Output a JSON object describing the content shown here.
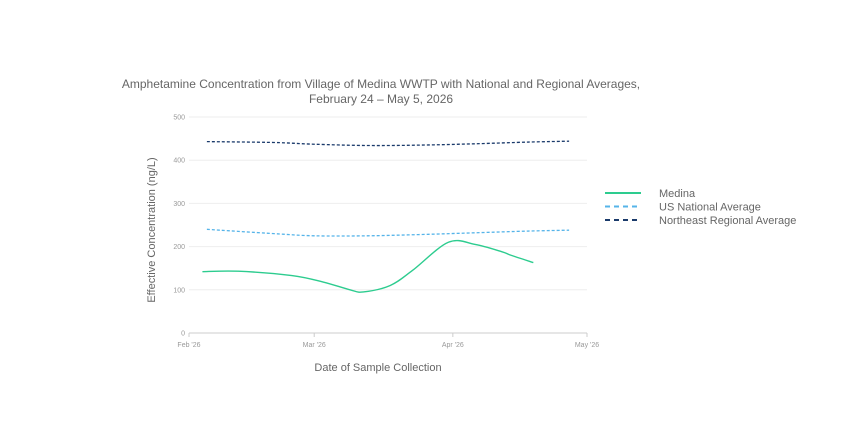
{
  "chart_data": {
    "type": "line",
    "title_line1": "Amphetamine Concentration from Village of Medina WWTP with National and Regional Averages,",
    "title_line2": "February 24 – May 5, 2026",
    "xlabel": "Date of Sample Collection",
    "ylabel": "Effective Concentration (ng/L)",
    "xlim": [
      "2026-02-01",
      "2026-05-01"
    ],
    "ylim": [
      0,
      500
    ],
    "x_ticks": [
      {
        "date": "2026-02-01",
        "label": "Feb '26"
      },
      {
        "date": "2026-03-01",
        "label": "Mar '26"
      },
      {
        "date": "2026-04-01",
        "label": "Apr '26"
      },
      {
        "date": "2026-05-01",
        "label": "May '26"
      }
    ],
    "y_ticks": [
      0,
      100,
      200,
      300,
      400,
      500
    ],
    "grid": true,
    "legend_position": "right",
    "series": [
      {
        "name": "Medina",
        "color": "#2dcc8f",
        "dash": "solid",
        "points": [
          {
            "x": "2026-02-04",
            "y": 142
          },
          {
            "x": "2026-02-12",
            "y": 143
          },
          {
            "x": "2026-02-24",
            "y": 133
          },
          {
            "x": "2026-03-03",
            "y": 118
          },
          {
            "x": "2026-03-09",
            "y": 100
          },
          {
            "x": "2026-03-12",
            "y": 95
          },
          {
            "x": "2026-03-18",
            "y": 110
          },
          {
            "x": "2026-03-23",
            "y": 145
          },
          {
            "x": "2026-03-31",
            "y": 210
          },
          {
            "x": "2026-04-06",
            "y": 205
          },
          {
            "x": "2026-04-12",
            "y": 188
          },
          {
            "x": "2026-04-14",
            "y": 180
          },
          {
            "x": "2026-04-19",
            "y": 163
          }
        ]
      },
      {
        "name": "US National Average",
        "color": "#56b4e9",
        "dash": "dashed",
        "points": [
          {
            "x": "2026-02-05",
            "y": 240
          },
          {
            "x": "2026-02-20",
            "y": 230
          },
          {
            "x": "2026-03-01",
            "y": 225
          },
          {
            "x": "2026-03-13",
            "y": 225
          },
          {
            "x": "2026-03-25",
            "y": 228
          },
          {
            "x": "2026-04-06",
            "y": 232
          },
          {
            "x": "2026-04-18",
            "y": 236
          },
          {
            "x": "2026-04-27",
            "y": 238
          }
        ]
      },
      {
        "name": "Northeast Regional Average",
        "color": "#1a3a6b",
        "dash": "dashed",
        "points": [
          {
            "x": "2026-02-05",
            "y": 443
          },
          {
            "x": "2026-02-20",
            "y": 441
          },
          {
            "x": "2026-03-01",
            "y": 437
          },
          {
            "x": "2026-03-13",
            "y": 434
          },
          {
            "x": "2026-03-25",
            "y": 435
          },
          {
            "x": "2026-04-06",
            "y": 438
          },
          {
            "x": "2026-04-18",
            "y": 442
          },
          {
            "x": "2026-04-27",
            "y": 444
          }
        ]
      }
    ]
  }
}
